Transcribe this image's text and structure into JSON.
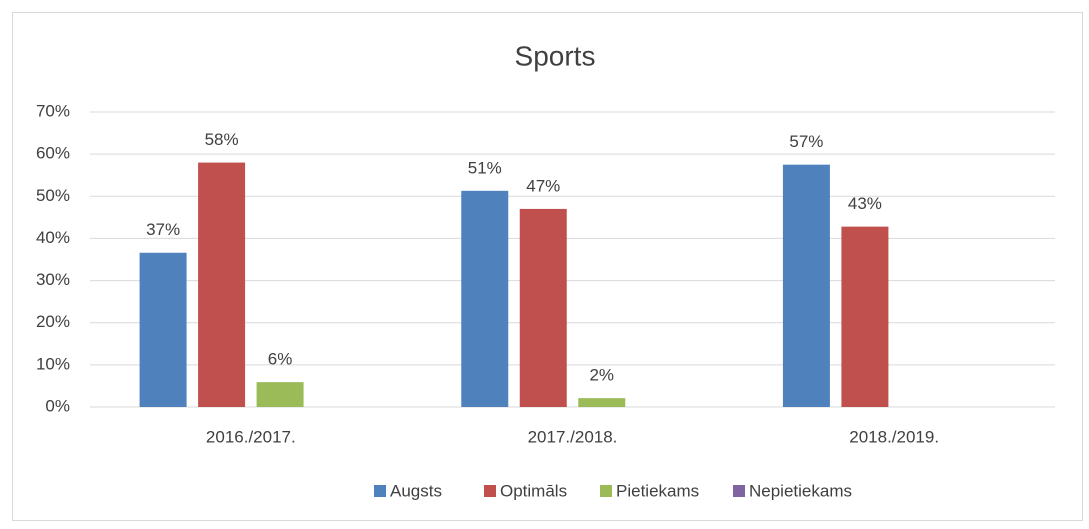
{
  "chart_data": {
    "type": "bar",
    "title": "Sports",
    "categories": [
      "2016./2017.",
      "2017./2018.",
      "2018./2019."
    ],
    "series": [
      {
        "name": "Augsts",
        "color": "#4f81bd",
        "values": [
          36.6,
          51.3,
          57.5
        ],
        "value_labels": [
          "37%",
          "51%",
          "57%"
        ]
      },
      {
        "name": "Optimāls",
        "color": "#c0504d",
        "values": [
          58,
          47,
          42.8
        ],
        "value_labels": [
          "58%",
          "47%",
          "43%"
        ]
      },
      {
        "name": "Pietiekams",
        "color": "#9bbb59",
        "values": [
          5.9,
          2.1,
          0
        ],
        "value_labels": [
          "6%",
          "2%",
          null
        ]
      },
      {
        "name": "Nepietiekams",
        "color": "#8064a2",
        "values": [
          0,
          0,
          0
        ],
        "value_labels": [
          null,
          null,
          null
        ]
      }
    ],
    "ylim": [
      0,
      70
    ],
    "yticks": [
      {
        "value": 0,
        "label": "0%"
      },
      {
        "value": 10,
        "label": "10%"
      },
      {
        "value": 20,
        "label": "20%"
      },
      {
        "value": 30,
        "label": "30%"
      },
      {
        "value": 40,
        "label": "40%"
      },
      {
        "value": 50,
        "label": "50%"
      },
      {
        "value": 60,
        "label": "60%"
      },
      {
        "value": 70,
        "label": "70%"
      }
    ],
    "grid": true,
    "legend": "bottom"
  }
}
